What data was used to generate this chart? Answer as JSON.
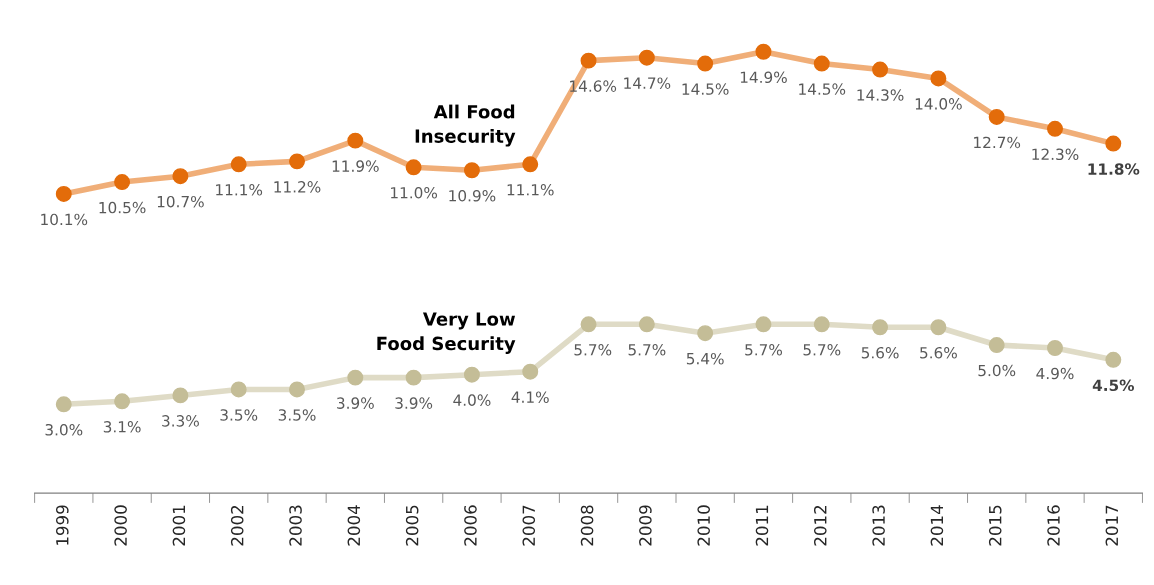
{
  "chart_data": {
    "type": "line",
    "categories": [
      "1999",
      "2000",
      "2001",
      "2002",
      "2003",
      "2004",
      "2005",
      "2006",
      "2007",
      "2008",
      "2009",
      "2010",
      "2011",
      "2012",
      "2013",
      "2014",
      "2015",
      "2016",
      "2017"
    ],
    "series": [
      {
        "name": "All Food\nInsecurity",
        "color": "#e36c0a",
        "values": [
          10.1,
          10.5,
          10.7,
          11.1,
          11.2,
          11.9,
          11.0,
          10.9,
          11.1,
          14.6,
          14.7,
          14.5,
          14.9,
          14.5,
          14.3,
          14.0,
          12.7,
          12.3,
          11.8
        ],
        "value_labels": [
          "10.1%",
          "10.5%",
          "10.7%",
          "11.1%",
          "11.2%",
          "11.9%",
          "11.0%",
          "10.9%",
          "11.1%",
          "14.6%",
          "14.7%",
          "14.5%",
          "14.9%",
          "14.5%",
          "14.3%",
          "14.0%",
          "12.7%",
          "12.3%",
          "11.8%"
        ]
      },
      {
        "name": "Very Low\nFood Security",
        "color": "#c4bd97",
        "values": [
          3.0,
          3.1,
          3.3,
          3.5,
          3.5,
          3.9,
          3.9,
          4.0,
          4.1,
          5.7,
          5.7,
          5.4,
          5.7,
          5.7,
          5.6,
          5.6,
          5.0,
          4.9,
          4.5
        ],
        "value_labels": [
          "3.0%",
          "3.1%",
          "3.3%",
          "3.5%",
          "3.5%",
          "3.9%",
          "3.9%",
          "4.0%",
          "4.1%",
          "5.7%",
          "5.7%",
          "5.4%",
          "5.7%",
          "5.7%",
          "5.6%",
          "5.6%",
          "5.0%",
          "4.9%",
          "4.5%"
        ]
      }
    ],
    "marker": "circle",
    "grid": false,
    "legend": false
  }
}
